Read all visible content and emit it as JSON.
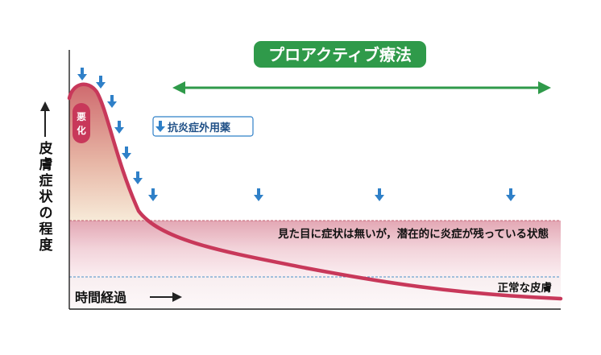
{
  "title": "プロアクティブ療法",
  "legend": {
    "label": "抗炎症外用薬"
  },
  "worsening_label": "悪化",
  "y_axis_label": [
    "皮",
    "膚",
    "症",
    "状",
    "の",
    "程",
    "度"
  ],
  "x_axis_label": "時間経過",
  "latent_zone_label": "見た目に症状は無いが，潜在的に炎症が残っている状態",
  "normal_zone_label": "正常な皮膚",
  "colors": {
    "title_bg": "#2f9a4a",
    "range_arrow": "#2f9a4a",
    "drug_arrow": "#2f80c8",
    "curve": "#c8385a",
    "latent_zone": "#f0c8d0",
    "normal_line": "#4a90c8"
  }
}
